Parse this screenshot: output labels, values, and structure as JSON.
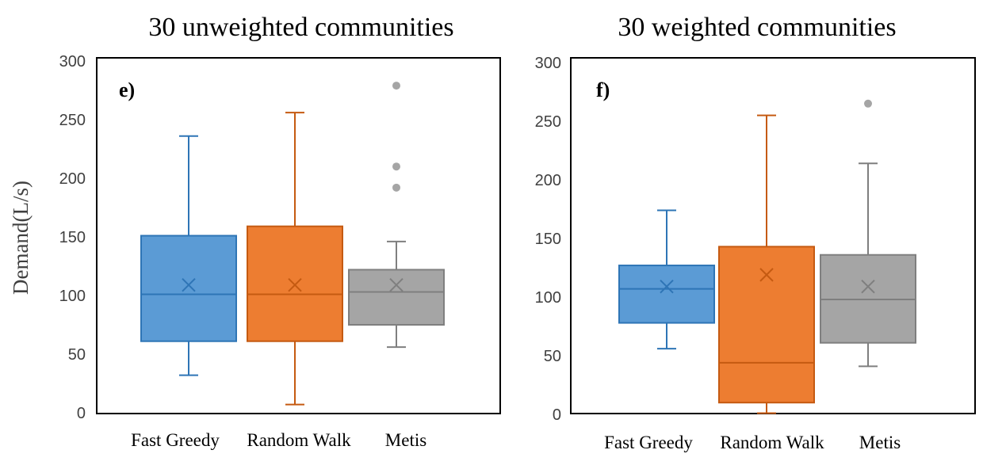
{
  "chart_data": [
    {
      "type": "box",
      "title": "30 unweighted communities",
      "panel_label": "e)",
      "ylabel": "Demand(L/s)",
      "xlabel": "",
      "ylim": [
        0,
        300
      ],
      "yticks": [
        0,
        50,
        100,
        150,
        200,
        250,
        300
      ],
      "categories": [
        "Fast Greedy",
        "Random  Walk",
        "Metis"
      ],
      "boxes": [
        {
          "name": "Fast Greedy",
          "color": "#5b9bd5",
          "edge": "#2e75b6",
          "min": 32,
          "q1": 61,
          "median": 101,
          "q3": 151,
          "max": 236,
          "mean": 109,
          "outliers": []
        },
        {
          "name": "Random Walk",
          "color": "#ed7d31",
          "edge": "#c55a11",
          "min": 7,
          "q1": 61,
          "median": 101,
          "q3": 159,
          "max": 256,
          "mean": 109,
          "outliers": []
        },
        {
          "name": "Metis",
          "color": "#a5a5a5",
          "edge": "#7f7f7f",
          "min": 56,
          "q1": 75,
          "median": 103,
          "q3": 122,
          "max": 146,
          "mean": 109,
          "outliers": [
            192,
            210,
            279
          ]
        }
      ]
    },
    {
      "type": "box",
      "title": "30 weighted communities",
      "panel_label": "f)",
      "ylabel": "",
      "xlabel": "",
      "ylim": [
        0,
        300
      ],
      "yticks": [
        0,
        50,
        100,
        150,
        200,
        250,
        300
      ],
      "categories": [
        "Fast Greedy",
        "Random  Walk",
        "Metis"
      ],
      "boxes": [
        {
          "name": "Fast Greedy",
          "color": "#5b9bd5",
          "edge": "#2e75b6",
          "min": 56,
          "q1": 78,
          "median": 107,
          "q3": 127,
          "max": 174,
          "mean": 109,
          "outliers": []
        },
        {
          "name": "Random Walk",
          "color": "#ed7d31",
          "edge": "#c55a11",
          "min": 1,
          "q1": 10,
          "median": 44,
          "q3": 143,
          "max": 255,
          "mean": 119,
          "outliers": []
        },
        {
          "name": "Metis",
          "color": "#a5a5a5",
          "edge": "#7f7f7f",
          "min": 41,
          "q1": 61,
          "median": 98,
          "q3": 136,
          "max": 214,
          "mean": 109,
          "outliers": [
            265
          ]
        }
      ]
    }
  ]
}
